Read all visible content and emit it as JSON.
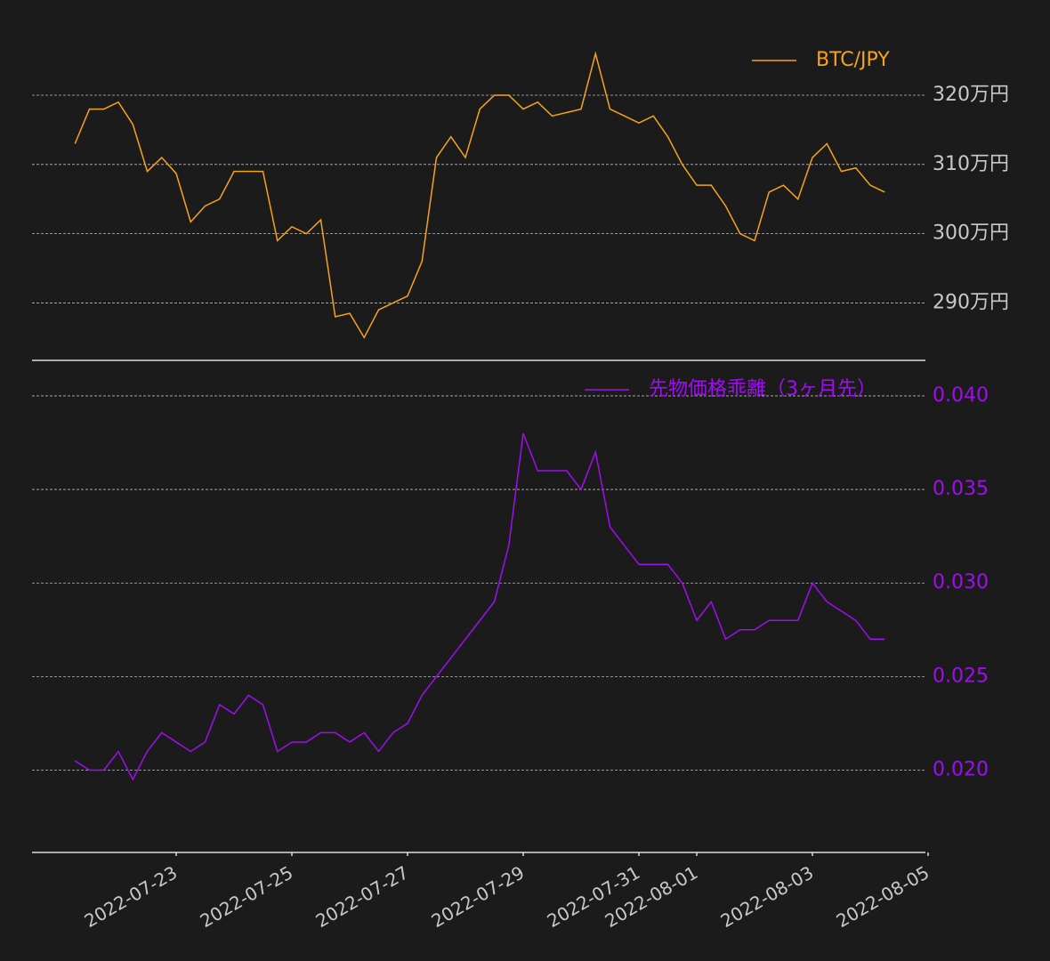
{
  "chart_data": [
    {
      "type": "line",
      "legend": "upper right",
      "grid": true,
      "x": [
        "2022-07-21 06:00",
        "2022-07-21 12:00",
        "2022-07-21 18:00",
        "2022-07-22 00:00",
        "2022-07-22 06:00",
        "2022-07-22 12:00",
        "2022-07-22 18:00",
        "2022-07-23 00:00",
        "2022-07-23 06:00",
        "2022-07-23 12:00",
        "2022-07-23 18:00",
        "2022-07-24 00:00",
        "2022-07-24 06:00",
        "2022-07-24 12:00",
        "2022-07-24 18:00",
        "2022-07-25 00:00",
        "2022-07-25 06:00",
        "2022-07-25 12:00",
        "2022-07-25 18:00",
        "2022-07-26 00:00",
        "2022-07-26 06:00",
        "2022-07-26 12:00",
        "2022-07-26 18:00",
        "2022-07-27 00:00",
        "2022-07-27 06:00",
        "2022-07-27 12:00",
        "2022-07-27 18:00",
        "2022-07-28 00:00",
        "2022-07-28 06:00",
        "2022-07-28 12:00",
        "2022-07-28 18:00",
        "2022-07-29 00:00",
        "2022-07-29 06:00",
        "2022-07-29 12:00",
        "2022-07-29 18:00",
        "2022-07-30 00:00",
        "2022-07-30 06:00",
        "2022-07-30 12:00",
        "2022-07-30 18:00",
        "2022-07-31 00:00",
        "2022-07-31 06:00",
        "2022-07-31 12:00",
        "2022-07-31 18:00",
        "2022-08-01 00:00",
        "2022-08-01 06:00",
        "2022-08-01 12:00",
        "2022-08-01 18:00",
        "2022-08-02 00:00",
        "2022-08-02 06:00",
        "2022-08-02 12:00",
        "2022-08-02 18:00",
        "2022-08-03 00:00",
        "2022-08-03 06:00",
        "2022-08-03 12:00",
        "2022-08-03 18:00",
        "2022-08-04 00:00",
        "2022-08-04 06:00"
      ],
      "series": [
        {
          "name": "BTC/JPY",
          "color": "#f7a21b",
          "values": [
            3130000,
            3180000,
            3180000,
            3190000,
            3158000,
            3090000,
            3110000,
            3087000,
            3017000,
            3040000,
            3050000,
            3090000,
            3090000,
            3090000,
            2990000,
            3010000,
            3000000,
            3020000,
            2880000,
            2885000,
            2850000,
            2890000,
            2900000,
            2910000,
            2960000,
            3110000,
            3140000,
            3110000,
            3180000,
            3200000,
            3200000,
            3180000,
            3190000,
            3170000,
            3175000,
            3180000,
            3260000,
            3180000,
            3170000,
            3160000,
            3170000,
            3140000,
            3100000,
            3070000,
            3070000,
            3040000,
            3000000,
            2990000,
            3060000,
            3070000,
            3050000,
            3110000,
            3130000,
            3090000,
            3095000,
            3070000,
            3060000
          ]
        }
      ],
      "xlim": [
        "2022-07-20 12:00",
        "2022-08-05 00:00"
      ],
      "ylim": [
        2817000,
        3299000
      ],
      "yticks": [
        {
          "value": 2900000,
          "label": "290万円"
        },
        {
          "value": 3000000,
          "label": "300万円"
        },
        {
          "value": 3100000,
          "label": "310万円"
        },
        {
          "value": 3200000,
          "label": "320万円"
        }
      ]
    },
    {
      "type": "line",
      "legend": "upper right",
      "grid": true,
      "x": [
        "2022-07-21 06:00",
        "2022-07-21 12:00",
        "2022-07-21 18:00",
        "2022-07-22 00:00",
        "2022-07-22 06:00",
        "2022-07-22 12:00",
        "2022-07-22 18:00",
        "2022-07-23 00:00",
        "2022-07-23 06:00",
        "2022-07-23 12:00",
        "2022-07-23 18:00",
        "2022-07-24 00:00",
        "2022-07-24 06:00",
        "2022-07-24 12:00",
        "2022-07-24 18:00",
        "2022-07-25 00:00",
        "2022-07-25 06:00",
        "2022-07-25 12:00",
        "2022-07-25 18:00",
        "2022-07-26 00:00",
        "2022-07-26 06:00",
        "2022-07-26 12:00",
        "2022-07-26 18:00",
        "2022-07-27 00:00",
        "2022-07-27 06:00",
        "2022-07-27 12:00",
        "2022-07-27 18:00",
        "2022-07-28 00:00",
        "2022-07-28 06:00",
        "2022-07-28 12:00",
        "2022-07-28 18:00",
        "2022-07-29 00:00",
        "2022-07-29 06:00",
        "2022-07-29 12:00",
        "2022-07-29 18:00",
        "2022-07-30 00:00",
        "2022-07-30 06:00",
        "2022-07-30 12:00",
        "2022-07-30 18:00",
        "2022-07-31 00:00",
        "2022-07-31 06:00",
        "2022-07-31 12:00",
        "2022-07-31 18:00",
        "2022-08-01 00:00",
        "2022-08-01 06:00",
        "2022-08-01 12:00",
        "2022-08-01 18:00",
        "2022-08-02 00:00",
        "2022-08-02 06:00",
        "2022-08-02 12:00",
        "2022-08-02 18:00",
        "2022-08-03 00:00",
        "2022-08-03 06:00",
        "2022-08-03 12:00",
        "2022-08-03 18:00",
        "2022-08-04 00:00",
        "2022-08-04 06:00"
      ],
      "series": [
        {
          "name": "先物価格乖離（3ヶ月先）",
          "color": "#a10cf0",
          "values": [
            0.0205,
            0.02,
            0.02,
            0.021,
            0.0195,
            0.021,
            0.022,
            0.0215,
            0.021,
            0.0215,
            0.0235,
            0.023,
            0.024,
            0.0235,
            0.021,
            0.0215,
            0.0215,
            0.022,
            0.022,
            0.0215,
            0.022,
            0.021,
            0.022,
            0.0225,
            0.024,
            0.025,
            0.026,
            0.027,
            0.028,
            0.029,
            0.032,
            0.038,
            0.036,
            0.036,
            0.036,
            0.035,
            0.037,
            0.033,
            0.032,
            0.031,
            0.031,
            0.031,
            0.03,
            0.028,
            0.029,
            0.027,
            0.0275,
            0.0275,
            0.028,
            0.028,
            0.028,
            0.03,
            0.029,
            0.0285,
            0.028,
            0.027,
            0.027
          ]
        }
      ],
      "xlim": [
        "2022-07-20 12:00",
        "2022-08-05 00:00"
      ],
      "xticks": [
        "2022-07-23",
        "2022-07-25",
        "2022-07-27",
        "2022-07-29",
        "2022-07-31",
        "2022-08-01",
        "2022-08-03",
        "2022-08-05"
      ],
      "ylim": [
        0.0156,
        0.0419
      ],
      "yticks": [
        {
          "value": 0.02,
          "label": "0.020"
        },
        {
          "value": 0.025,
          "label": "0.025"
        },
        {
          "value": 0.03,
          "label": "0.030"
        },
        {
          "value": 0.035,
          "label": "0.035"
        },
        {
          "value": 0.04,
          "label": "0.040"
        }
      ]
    }
  ]
}
